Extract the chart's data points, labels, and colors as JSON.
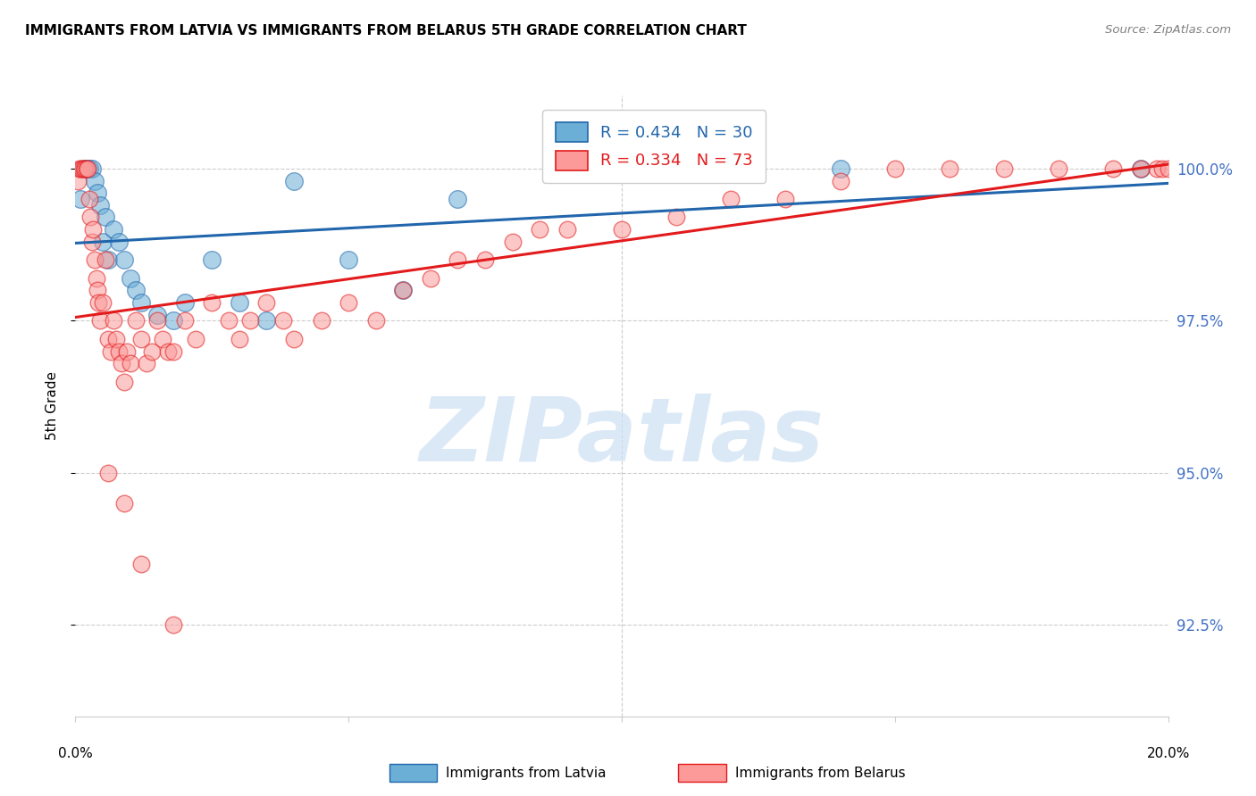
{
  "title": "IMMIGRANTS FROM LATVIA VS IMMIGRANTS FROM BELARUS 5TH GRADE CORRELATION CHART",
  "source": "Source: ZipAtlas.com",
  "ylabel": "5th Grade",
  "yticks": [
    92.5,
    95.0,
    97.5,
    100.0
  ],
  "ytick_labels": [
    "92.5%",
    "95.0%",
    "97.5%",
    "100.0%"
  ],
  "xlim": [
    0.0,
    20.0
  ],
  "ylim": [
    91.0,
    101.2
  ],
  "legend_r_latvia": "0.434",
  "legend_n_latvia": "30",
  "legend_r_belarus": "0.334",
  "legend_n_belarus": "73",
  "color_latvia": "#6baed6",
  "color_belarus": "#fb9a99",
  "color_trendline_latvia": "#2166ac",
  "color_trendline_belarus": "#e31a1c",
  "latvia_x": [
    0.1,
    0.15,
    0.2,
    0.25,
    0.3,
    0.35,
    0.4,
    0.45,
    0.5,
    0.55,
    0.6,
    0.7,
    0.8,
    0.9,
    1.0,
    1.1,
    1.2,
    1.5,
    1.8,
    2.0,
    2.5,
    3.0,
    3.5,
    4.0,
    5.0,
    6.0,
    7.0,
    9.0,
    14.0,
    19.5
  ],
  "latvia_y": [
    99.5,
    100.0,
    100.0,
    100.0,
    100.0,
    99.8,
    99.6,
    99.4,
    98.8,
    99.2,
    98.5,
    99.0,
    98.8,
    98.5,
    98.2,
    98.0,
    97.8,
    97.6,
    97.5,
    97.8,
    98.5,
    97.8,
    97.5,
    99.8,
    98.5,
    98.0,
    99.5,
    100.0,
    100.0,
    100.0
  ],
  "belarus_x": [
    0.05,
    0.08,
    0.1,
    0.12,
    0.15,
    0.18,
    0.2,
    0.22,
    0.25,
    0.28,
    0.3,
    0.32,
    0.35,
    0.38,
    0.4,
    0.42,
    0.45,
    0.5,
    0.55,
    0.6,
    0.65,
    0.7,
    0.75,
    0.8,
    0.85,
    0.9,
    0.95,
    1.0,
    1.1,
    1.2,
    1.3,
    1.4,
    1.5,
    1.6,
    1.7,
    1.8,
    2.0,
    2.2,
    2.5,
    2.8,
    3.0,
    3.2,
    3.5,
    3.8,
    4.0,
    4.5,
    5.0,
    5.5,
    6.0,
    6.5,
    7.0,
    7.5,
    8.0,
    8.5,
    9.0,
    10.0,
    11.0,
    12.0,
    13.0,
    14.0,
    15.0,
    16.0,
    17.0,
    18.0,
    19.0,
    19.5,
    19.8,
    19.9,
    20.0,
    0.6,
    0.9,
    1.2,
    1.8
  ],
  "belarus_y": [
    99.8,
    100.0,
    100.0,
    100.0,
    100.0,
    100.0,
    100.0,
    100.0,
    99.5,
    99.2,
    98.8,
    99.0,
    98.5,
    98.2,
    98.0,
    97.8,
    97.5,
    97.8,
    98.5,
    97.2,
    97.0,
    97.5,
    97.2,
    97.0,
    96.8,
    96.5,
    97.0,
    96.8,
    97.5,
    97.2,
    96.8,
    97.0,
    97.5,
    97.2,
    97.0,
    97.0,
    97.5,
    97.2,
    97.8,
    97.5,
    97.2,
    97.5,
    97.8,
    97.5,
    97.2,
    97.5,
    97.8,
    97.5,
    98.0,
    98.2,
    98.5,
    98.5,
    98.8,
    99.0,
    99.0,
    99.0,
    99.2,
    99.5,
    99.5,
    99.8,
    100.0,
    100.0,
    100.0,
    100.0,
    100.0,
    100.0,
    100.0,
    100.0,
    100.0,
    95.0,
    94.5,
    93.5,
    92.5
  ]
}
